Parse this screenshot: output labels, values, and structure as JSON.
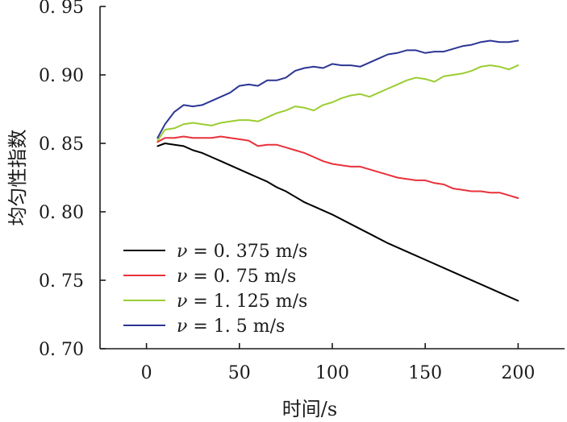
{
  "chart_data": {
    "type": "line",
    "title": "",
    "xlabel": "时间/s",
    "ylabel": "均匀性指数",
    "xlim": [
      -25,
      225
    ],
    "ylim": [
      0.7,
      0.95
    ],
    "xticks": [
      0,
      50,
      100,
      150,
      200
    ],
    "xtick_labels": [
      "0",
      "50",
      "100",
      "150",
      "200"
    ],
    "yticks": [
      0.7,
      0.75,
      0.8,
      0.85,
      0.9,
      0.95
    ],
    "ytick_labels": [
      "0. 70",
      "0. 75",
      "0. 80",
      "0. 85",
      "0. 90",
      "0. 95"
    ],
    "grid": false,
    "legend_position": "bottom-left",
    "series": [
      {
        "name": "ν = 0. 375 m/s",
        "legend_var": "ν",
        "legend_rest": " = 0. 375 m/s",
        "color": "#000000",
        "x": [
          6,
          10,
          15,
          20,
          25,
          30,
          35,
          40,
          45,
          50,
          55,
          60,
          65,
          70,
          75,
          80,
          85,
          90,
          95,
          100,
          110,
          120,
          130,
          140,
          150,
          160,
          170,
          180,
          190,
          200
        ],
        "y": [
          0.848,
          0.85,
          0.849,
          0.848,
          0.845,
          0.843,
          0.84,
          0.837,
          0.834,
          0.831,
          0.828,
          0.825,
          0.822,
          0.818,
          0.815,
          0.811,
          0.807,
          0.804,
          0.801,
          0.798,
          0.791,
          0.784,
          0.777,
          0.771,
          0.765,
          0.759,
          0.753,
          0.747,
          0.741,
          0.735
        ]
      },
      {
        "name": "ν = 0. 75 m/s",
        "legend_var": "ν",
        "legend_rest": " = 0. 75 m/s",
        "color": "#e8313a",
        "x": [
          6,
          10,
          15,
          20,
          25,
          30,
          35,
          40,
          45,
          50,
          55,
          60,
          65,
          70,
          75,
          80,
          85,
          90,
          95,
          100,
          105,
          110,
          115,
          120,
          125,
          130,
          135,
          140,
          145,
          150,
          155,
          160,
          165,
          170,
          175,
          180,
          185,
          190,
          195,
          200
        ],
        "y": [
          0.851,
          0.854,
          0.854,
          0.855,
          0.854,
          0.854,
          0.854,
          0.855,
          0.854,
          0.853,
          0.852,
          0.848,
          0.849,
          0.849,
          0.847,
          0.845,
          0.843,
          0.84,
          0.837,
          0.835,
          0.834,
          0.833,
          0.833,
          0.831,
          0.829,
          0.827,
          0.825,
          0.824,
          0.823,
          0.823,
          0.821,
          0.82,
          0.817,
          0.816,
          0.815,
          0.815,
          0.814,
          0.814,
          0.812,
          0.81
        ]
      },
      {
        "name": "ν = 1. 125 m/s",
        "legend_var": "ν",
        "legend_rest": " = 1. 125 m/s",
        "color": "#9acd32",
        "x": [
          6,
          10,
          15,
          20,
          25,
          30,
          35,
          40,
          45,
          50,
          55,
          60,
          65,
          70,
          75,
          80,
          85,
          90,
          95,
          100,
          105,
          110,
          115,
          120,
          125,
          130,
          135,
          140,
          145,
          150,
          155,
          160,
          165,
          170,
          175,
          180,
          185,
          190,
          195,
          200
        ],
        "y": [
          0.852,
          0.86,
          0.861,
          0.864,
          0.865,
          0.864,
          0.863,
          0.865,
          0.866,
          0.867,
          0.867,
          0.866,
          0.869,
          0.872,
          0.874,
          0.877,
          0.876,
          0.874,
          0.878,
          0.88,
          0.883,
          0.885,
          0.886,
          0.884,
          0.887,
          0.89,
          0.893,
          0.896,
          0.898,
          0.897,
          0.895,
          0.899,
          0.9,
          0.901,
          0.903,
          0.906,
          0.907,
          0.906,
          0.904,
          0.907
        ]
      },
      {
        "name": "ν = 1. 5 m/s",
        "legend_var": "ν",
        "legend_rest": " = 1. 5 m/s",
        "color": "#2b3593",
        "x": [
          6,
          10,
          15,
          20,
          25,
          30,
          35,
          40,
          45,
          50,
          55,
          60,
          65,
          70,
          75,
          80,
          85,
          90,
          95,
          100,
          105,
          110,
          115,
          120,
          125,
          130,
          135,
          140,
          145,
          150,
          155,
          160,
          165,
          170,
          175,
          180,
          185,
          190,
          195,
          200
        ],
        "y": [
          0.854,
          0.864,
          0.873,
          0.878,
          0.877,
          0.878,
          0.881,
          0.884,
          0.887,
          0.892,
          0.893,
          0.892,
          0.896,
          0.896,
          0.898,
          0.903,
          0.905,
          0.906,
          0.905,
          0.908,
          0.907,
          0.907,
          0.906,
          0.909,
          0.912,
          0.915,
          0.916,
          0.918,
          0.918,
          0.916,
          0.917,
          0.917,
          0.919,
          0.921,
          0.922,
          0.924,
          0.925,
          0.924,
          0.924,
          0.925
        ]
      }
    ]
  }
}
